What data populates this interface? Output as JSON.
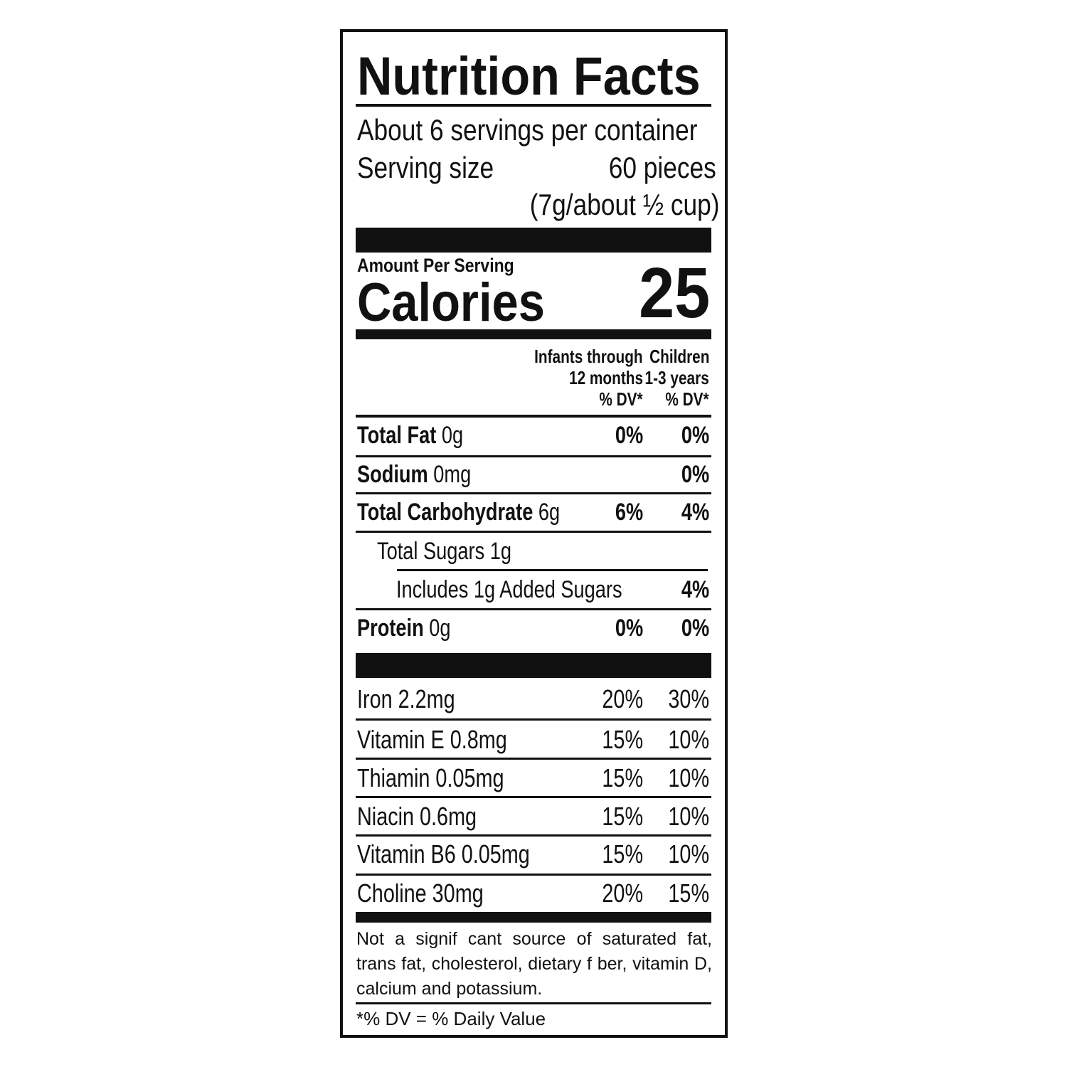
{
  "title": "Nutrition Facts",
  "servings_per_container": "About 6 servings per container",
  "serving_size": {
    "label": "Serving size",
    "value": "60 pieces",
    "detail": "(7g/about ½ cup)"
  },
  "amount_per_serving": "Amount Per Serving",
  "calories": {
    "label": "Calories",
    "value": 25
  },
  "columns": [
    [
      "Infants through",
      "12 months",
      "% DV*"
    ],
    [
      "Children",
      "1-3 years",
      "% DV*"
    ]
  ],
  "nutrients": [
    {
      "name": "Total Fat",
      "amount": "0g",
      "infants": "0%",
      "children": "0%"
    },
    {
      "name": "Sodium",
      "amount": "0mg",
      "children": "0%"
    },
    {
      "name": "Total Carbohydrate",
      "amount": "6g",
      "infants": "6%",
      "children": "4%"
    },
    {
      "name": "Total Sugars 1g"
    },
    {
      "name": "Includes 1g Added Sugars",
      "children": "4%"
    },
    {
      "name": "Protein",
      "amount": "0g",
      "infants": "0%",
      "children": "0%"
    }
  ],
  "vitamins": [
    {
      "name": "Iron 2.2mg",
      "infants": "20%",
      "children": "30%"
    },
    {
      "name": "Vitamin E 0.8mg",
      "infants": "15%",
      "children": "10%"
    },
    {
      "name": "Thiamin 0.05mg",
      "infants": "15%",
      "children": "10%"
    },
    {
      "name": "Niacin 0.6mg",
      "infants": "15%",
      "children": "10%"
    },
    {
      "name": "Vitamin B6 0.05mg",
      "infants": "15%",
      "children": "10%"
    },
    {
      "name": "Choline 30mg",
      "infants": "20%",
      "children": "15%"
    }
  ],
  "footnote": "Not a signif cant source of saturated fat, trans fat, cholesterol, dietary f ber, vitamin D, calcium and potassium.",
  "dv_note": "*% DV = % Daily Value"
}
